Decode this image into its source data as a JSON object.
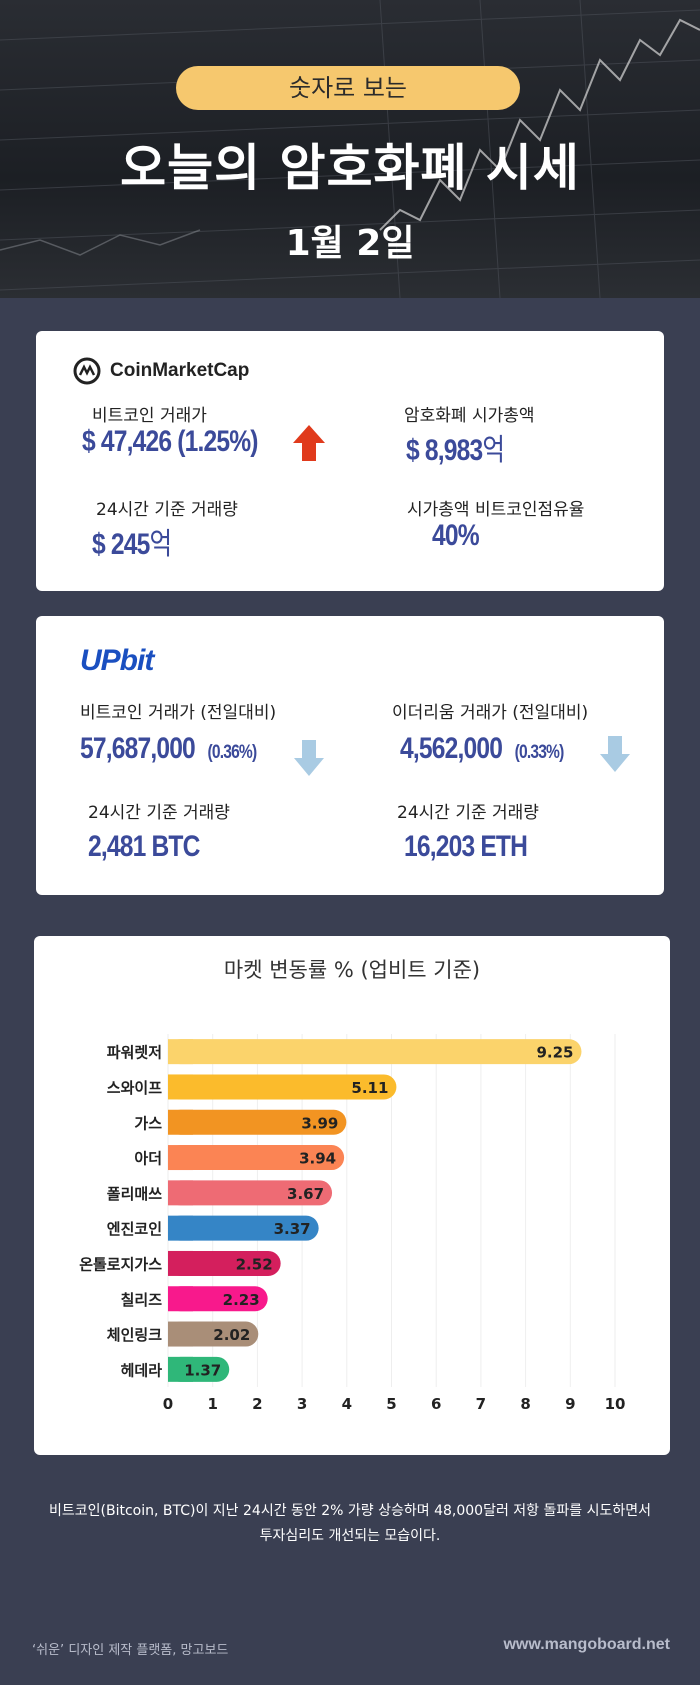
{
  "header": {
    "pill": "숫자로 보는",
    "title": "오늘의 암호화폐 시세",
    "date": "1월 2일"
  },
  "coinmarketcap": {
    "logo_text": "CoinMarketCap",
    "btc_price_label": "비트코인 거래가",
    "btc_price": "$ 47,426",
    "btc_change": "(1.25%)",
    "btc_change_direction": "up",
    "market_cap_label": "암호화폐 시가총액",
    "market_cap": "$ 8,983",
    "market_cap_unit": "억",
    "volume_label": "24시간 기준 거래량",
    "volume": "$ 245",
    "volume_unit": "억",
    "dominance_label": "시가총액 비트코인점유율",
    "dominance": "40%"
  },
  "upbit": {
    "logo_text": "UPbit",
    "btc_label": "비트코인 거래가 (전일대비)",
    "btc_price": "57,687,000",
    "btc_change": "(0.36%)",
    "btc_direction": "down",
    "eth_label": "이더리움 거래가 (전일대비)",
    "eth_price": "4,562,000",
    "eth_change": "(0.33%)",
    "eth_direction": "down",
    "btc_volume_label": "24시간 기준 거래량",
    "btc_volume": "2,481 BTC",
    "eth_volume_label": "24시간 기준 거래량",
    "eth_volume": "16,203 ETH"
  },
  "chart_data": {
    "type": "bar",
    "orientation": "horizontal",
    "title": "마켓 변동률 % (업비트 기준)",
    "categories": [
      "파워렛저",
      "스와이프",
      "가스",
      "아더",
      "폴리매쓰",
      "엔진코인",
      "온톨로지가스",
      "칠리즈",
      "체인링크",
      "헤데라"
    ],
    "values": [
      9.25,
      5.11,
      3.99,
      3.94,
      3.67,
      3.37,
      2.52,
      2.23,
      2.02,
      1.37
    ],
    "value_labels": [
      "9.25",
      "5.11",
      "3.99",
      "3.94",
      "3.67",
      "3.37",
      "2.52",
      "2.23",
      "2.02",
      "1.37"
    ],
    "colors": [
      "#fbd36b",
      "#fbbb2c",
      "#f29422",
      "#fb8454",
      "#ee6b74",
      "#3585c6",
      "#d41f5d",
      "#f8198c",
      "#a98e78",
      "#2fb779"
    ],
    "xlim": [
      0,
      10
    ],
    "xticks": [
      "0",
      "1",
      "2",
      "3",
      "4",
      "5",
      "6",
      "7",
      "8",
      "9",
      "10"
    ],
    "grid": true
  },
  "footnote": {
    "line1": "비트코인(Bitcoin, BTC)이 지난 24시간 동안 2% 가량 상승하며 48,000달러 저항 돌파를 시도하면서",
    "line2": "투자심리도 개선되는 모습이다."
  },
  "footer": {
    "left": "‘쉬운’ 디자인 제작 플랫폼, 망고보드",
    "right": "www.mangoboard.net"
  }
}
